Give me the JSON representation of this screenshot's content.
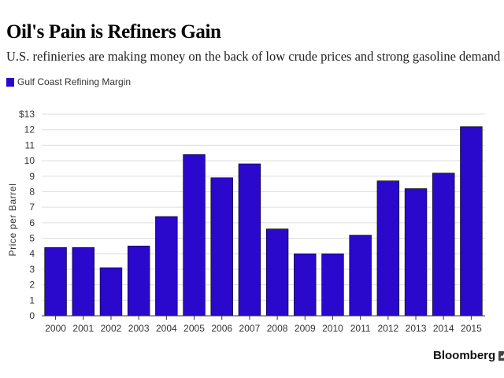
{
  "title": "Oil's Pain is Refiners Gain",
  "subtitle": "U.S. refinieries are making money on the back of low crude prices and strong gasoline demand",
  "brand": "Bloomberg",
  "brand_icon": "bloomberg-chart-icon",
  "colors": {
    "bar": "#2a08cc",
    "grid": "#dddddd",
    "axis": "#333333",
    "text": "#333333"
  },
  "chart_data": {
    "type": "bar",
    "title": "Oil's Pain is Refiners Gain",
    "subtitle": "U.S. refinieries are making money on the back of low crude prices and strong gasoline demand",
    "xlabel": "",
    "ylabel": "Price per Barrel",
    "ylim": [
      0,
      13
    ],
    "yticks": [
      "0",
      "1",
      "2",
      "3",
      "4",
      "5",
      "6",
      "7",
      "8",
      "9",
      "10",
      "11",
      "12",
      "$13"
    ],
    "grid": true,
    "legend_position": "top-left",
    "categories": [
      "2000",
      "2001",
      "2002",
      "2003",
      "2004",
      "2005",
      "2006",
      "2007",
      "2008",
      "2009",
      "2010",
      "2011",
      "2012",
      "2013",
      "2014",
      "2015"
    ],
    "series": [
      {
        "name": "Gulf Coast Refining Margin",
        "values": [
          4.4,
          4.4,
          3.1,
          4.5,
          6.4,
          10.4,
          8.9,
          9.8,
          5.6,
          4.0,
          4.0,
          5.2,
          8.7,
          8.2,
          9.2,
          12.2
        ]
      }
    ]
  }
}
